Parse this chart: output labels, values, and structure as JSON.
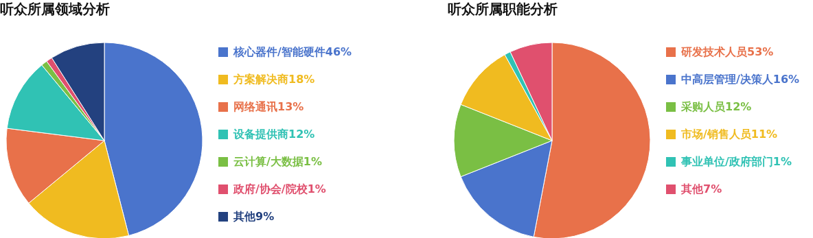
{
  "chart_data": [
    {
      "type": "pie",
      "title": "听众所属领域分析",
      "categories": [
        "核心器件/智能硬件",
        "方案解决商",
        "网络通讯",
        "设备提供商",
        "云计算/大数据",
        "政府/协会/院校",
        "其他"
      ],
      "values": [
        46,
        18,
        13,
        12,
        1,
        1,
        9
      ],
      "value_labels": [
        "46%",
        "18%",
        "13%",
        "12%",
        "1%",
        "1%",
        "9%"
      ],
      "colors": [
        "#4a74cc",
        "#f0bb20",
        "#e8714a",
        "#30c2b4",
        "#7abf44",
        "#e0506e",
        "#23417f"
      ],
      "legend": "right"
    },
    {
      "type": "pie",
      "title": "听众所属职能分析",
      "categories": [
        "研发技术人员",
        "中高层管理/决策人",
        "采购人员",
        "市场/销售人员",
        "事业单位/政府部门",
        "其他"
      ],
      "values": [
        53,
        16,
        12,
        11,
        1,
        7
      ],
      "value_labels": [
        "53%",
        "16%",
        "12%",
        "11%",
        "1%",
        "7%"
      ],
      "colors": [
        "#e8714a",
        "#4a74cc",
        "#7abf44",
        "#f0bb20",
        "#30c2b4",
        "#e0506e"
      ],
      "legend": "right"
    }
  ]
}
